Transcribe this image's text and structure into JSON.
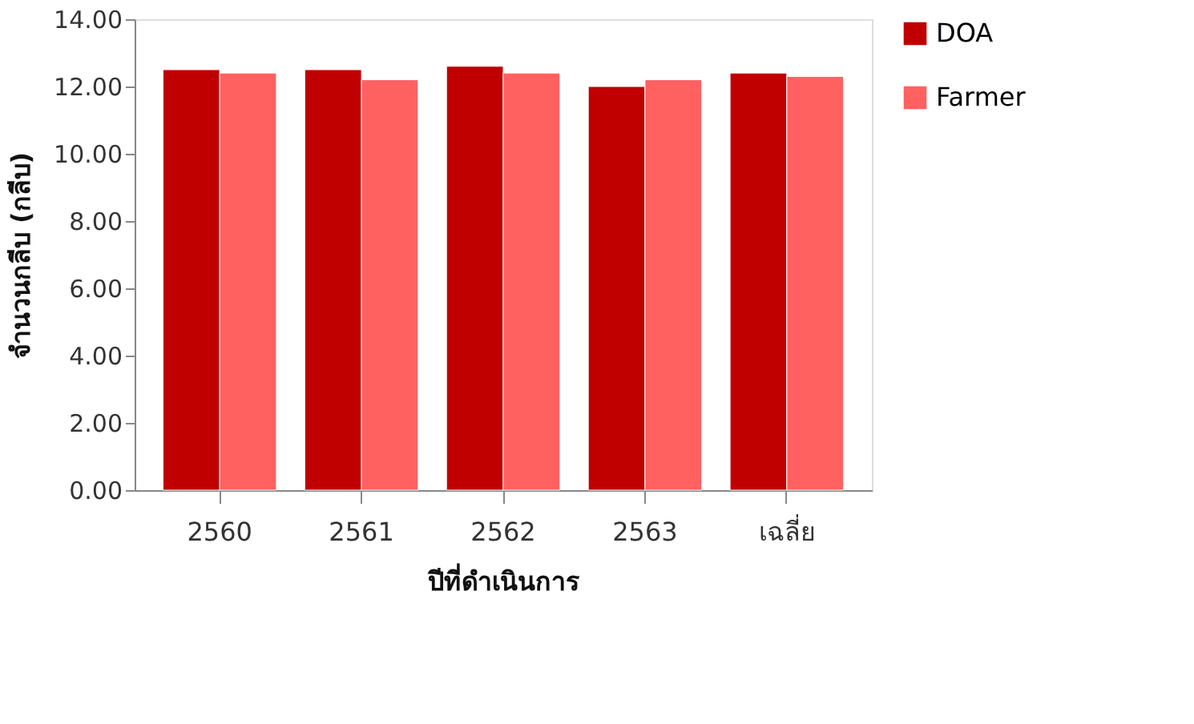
{
  "chart_data": {
    "type": "bar",
    "xlabel": "ปีที่ดำเนินการ",
    "ylabel": "จำนวนกลีบ (กลีบ)",
    "categories": [
      "2560",
      "2561",
      "2562",
      "2563",
      "เฉลี่ย"
    ],
    "series": [
      {
        "name": "DOA",
        "color": "#c00000",
        "values": [
          12.5,
          12.5,
          12.6,
          12.0,
          12.4
        ]
      },
      {
        "name": "Farmer",
        "color": "#ff6161",
        "values": [
          12.4,
          12.2,
          12.4,
          12.2,
          12.3
        ]
      }
    ],
    "ylim": [
      0,
      14
    ],
    "yticks": [
      {
        "value": 0,
        "label": "0.00"
      },
      {
        "value": 2,
        "label": "2.00"
      },
      {
        "value": 4,
        "label": "4.00"
      },
      {
        "value": 6,
        "label": "6.00"
      },
      {
        "value": 8,
        "label": "8.00"
      },
      {
        "value": 10,
        "label": "10.00"
      },
      {
        "value": 12,
        "label": "12.00"
      },
      {
        "value": 14,
        "label": "14.00"
      }
    ],
    "grid": false,
    "legend": "right"
  }
}
